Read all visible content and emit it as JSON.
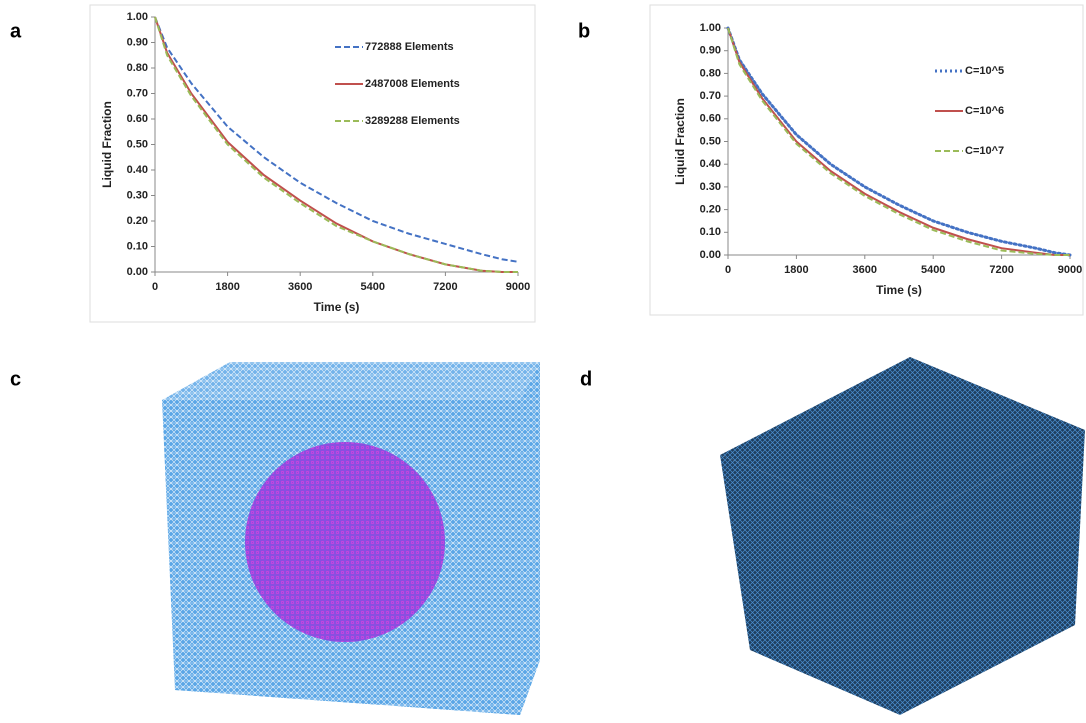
{
  "panel_labels": [
    "a",
    "b",
    "c",
    "d"
  ],
  "chart_data": [
    {
      "type": "line",
      "xlabel": "Time (s)",
      "ylabel": "Liquid Fraction",
      "x": [
        0,
        300,
        900,
        1800,
        2700,
        3600,
        4500,
        5400,
        6300,
        7200,
        8100,
        8600,
        9000
      ],
      "xlim": [
        0,
        9000
      ],
      "xticks": [
        0,
        1800,
        3600,
        5400,
        7200,
        9000
      ],
      "ylim": [
        0,
        1
      ],
      "yticks": [
        {
          "value": 0,
          "label": "0.00"
        },
        {
          "value": 0.1,
          "label": "0.10"
        },
        {
          "value": 0.2,
          "label": "0.20"
        },
        {
          "value": 0.3,
          "label": "0.30"
        },
        {
          "value": 0.4,
          "label": "0.40"
        },
        {
          "value": 0.5,
          "label": "0.50"
        },
        {
          "value": 0.6,
          "label": "0.60"
        },
        {
          "value": 0.7,
          "label": "0.70"
        },
        {
          "value": 0.8,
          "label": "0.80"
        },
        {
          "value": 0.9,
          "label": "0.90"
        },
        {
          "value": 1,
          "label": "1.00"
        }
      ],
      "legend": "upper right",
      "series": [
        {
          "name": "772888 Elements",
          "color": "#4472c4",
          "style": "dashed",
          "values": [
            1.0,
            0.88,
            0.74,
            0.57,
            0.45,
            0.35,
            0.27,
            0.2,
            0.15,
            0.11,
            0.07,
            0.05,
            0.04
          ]
        },
        {
          "name": "2487008 Elements",
          "color": "#c0504d",
          "style": "solid",
          "values": [
            1.0,
            0.86,
            0.7,
            0.51,
            0.38,
            0.28,
            0.19,
            0.12,
            0.07,
            0.03,
            0.005,
            0,
            0
          ]
        },
        {
          "name": "3289288 Elements",
          "color": "#9bbb59",
          "style": "dashed",
          "values": [
            1.0,
            0.85,
            0.69,
            0.5,
            0.37,
            0.27,
            0.18,
            0.12,
            0.07,
            0.03,
            0.005,
            0,
            0
          ]
        }
      ]
    },
    {
      "type": "line",
      "xlabel": "Time (s)",
      "ylabel": "Liquid  Fraction",
      "x": [
        0,
        300,
        900,
        1800,
        2700,
        3600,
        4500,
        5400,
        6300,
        7200,
        8100,
        8600,
        9000
      ],
      "xlim": [
        0,
        9000
      ],
      "xticks": [
        0,
        1800,
        3600,
        5400,
        7200,
        9000
      ],
      "ylim": [
        0,
        1
      ],
      "yticks": [
        {
          "value": 0,
          "label": "0.00"
        },
        {
          "value": 0.1,
          "label": "0.10"
        },
        {
          "value": 0.2,
          "label": "0.20"
        },
        {
          "value": 0.3,
          "label": "0.30"
        },
        {
          "value": 0.4,
          "label": "0.40"
        },
        {
          "value": 0.5,
          "label": "0.50"
        },
        {
          "value": 0.6,
          "label": "0.60"
        },
        {
          "value": 0.7,
          "label": "0.70"
        },
        {
          "value": 0.8,
          "label": "0.80"
        },
        {
          "value": 0.9,
          "label": "0.90"
        },
        {
          "value": 1,
          "label": "1.00"
        }
      ],
      "legend": "upper right",
      "series": [
        {
          "name": "C=10^5",
          "color": "#4472c4",
          "style": "dotted",
          "values": [
            1.0,
            0.86,
            0.71,
            0.53,
            0.4,
            0.3,
            0.22,
            0.15,
            0.1,
            0.06,
            0.03,
            0.01,
            0
          ]
        },
        {
          "name": "C=10^6",
          "color": "#c0504d",
          "style": "solid",
          "values": [
            1.0,
            0.85,
            0.69,
            0.5,
            0.37,
            0.27,
            0.19,
            0.12,
            0.07,
            0.03,
            0.01,
            0,
            0
          ]
        },
        {
          "name": "C=10^7",
          "color": "#9bbb59",
          "style": "dashed",
          "values": [
            1.0,
            0.84,
            0.68,
            0.49,
            0.36,
            0.26,
            0.18,
            0.11,
            0.06,
            0.02,
            0.005,
            0,
            0
          ]
        }
      ]
    }
  ]
}
